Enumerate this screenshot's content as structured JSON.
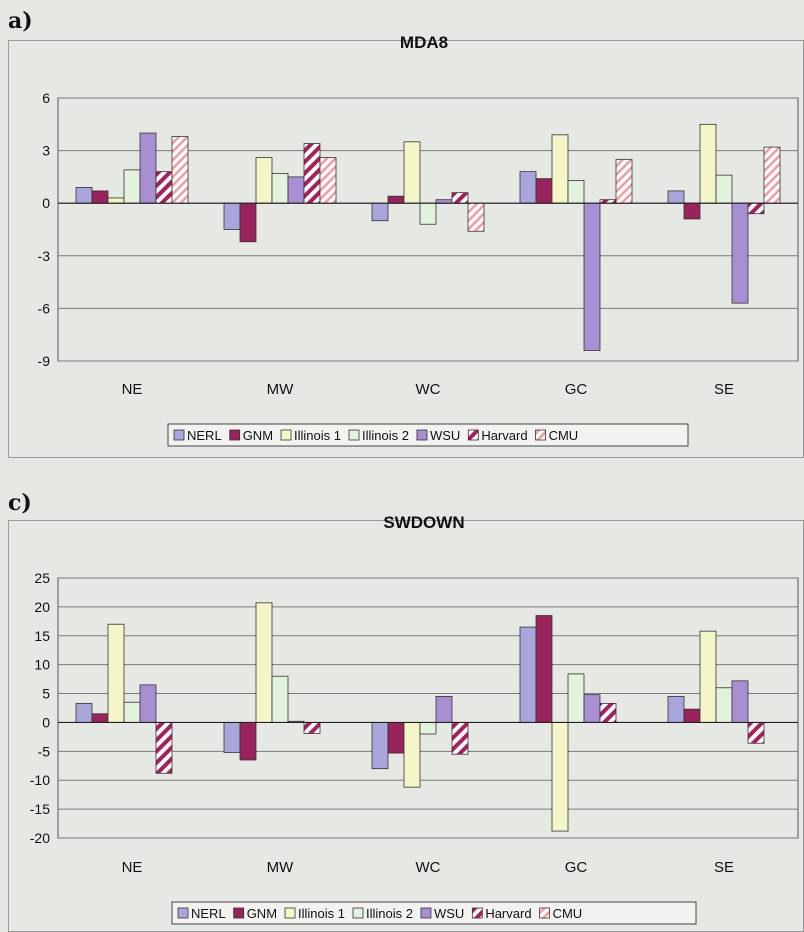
{
  "colors": {
    "NERL": "#a9a6dc",
    "GNM": "#99235c",
    "Illinois 1": "#f5f6c8",
    "Illinois 2": "#e2f2dc",
    "WSU": "#a88ed2",
    "Harvard": "#a81f5a",
    "CMU": "#f29ca0",
    "plot_bg": "#e6e8e3",
    "grid": "#7a7a7a"
  },
  "chart_data": [
    {
      "type": "bar",
      "panel_label": "a)",
      "title": "MDA8",
      "categories": [
        "NE",
        "MW",
        "WC",
        "GC",
        "SE"
      ],
      "ylim": [
        -9,
        6
      ],
      "yticks": [
        6,
        3,
        0,
        -3,
        -6,
        -9
      ],
      "grid": true,
      "legend_position": "bottom",
      "series": [
        {
          "name": "NERL",
          "pattern": "solid",
          "values": [
            0.9,
            -1.5,
            -1.0,
            1.8,
            0.7
          ]
        },
        {
          "name": "GNM",
          "pattern": "solid",
          "values": [
            0.7,
            -2.2,
            0.4,
            1.4,
            -0.9
          ]
        },
        {
          "name": "Illinois 1",
          "pattern": "solid",
          "values": [
            0.3,
            2.6,
            3.5,
            3.9,
            4.5
          ]
        },
        {
          "name": "Illinois 2",
          "pattern": "solid",
          "values": [
            1.9,
            1.7,
            -1.2,
            1.3,
            1.6
          ]
        },
        {
          "name": "WSU",
          "pattern": "solid",
          "values": [
            4.0,
            1.5,
            0.2,
            -8.4,
            -5.7
          ]
        },
        {
          "name": "Harvard",
          "pattern": "wide",
          "values": [
            1.8,
            3.4,
            0.6,
            0.2,
            -0.6
          ]
        },
        {
          "name": "CMU",
          "pattern": "light",
          "values": [
            3.8,
            2.6,
            -1.6,
            2.5,
            3.2
          ]
        }
      ]
    },
    {
      "type": "bar",
      "panel_label": "c)",
      "title": "SWDOWN",
      "categories": [
        "NE",
        "MW",
        "WC",
        "GC",
        "SE"
      ],
      "ylim": [
        -20,
        25
      ],
      "yticks": [
        25,
        20,
        15,
        10,
        5,
        0,
        -5,
        -10,
        -15,
        -20
      ],
      "grid": true,
      "legend_position": "bottom",
      "series": [
        {
          "name": "NERL",
          "pattern": "solid",
          "values": [
            3.3,
            -5.2,
            -8.0,
            16.5,
            4.5
          ]
        },
        {
          "name": "GNM",
          "pattern": "solid",
          "values": [
            1.5,
            -6.5,
            -5.3,
            18.5,
            2.3
          ]
        },
        {
          "name": "Illinois 1",
          "pattern": "solid",
          "values": [
            17.0,
            20.7,
            -11.2,
            -18.8,
            15.8
          ]
        },
        {
          "name": "Illinois 2",
          "pattern": "solid",
          "values": [
            3.5,
            8.0,
            -2.0,
            8.4,
            6.0
          ]
        },
        {
          "name": "WSU",
          "pattern": "solid",
          "values": [
            6.5,
            0.2,
            4.5,
            4.8,
            7.2
          ]
        },
        {
          "name": "Harvard",
          "pattern": "wide",
          "values": [
            -8.8,
            -1.9,
            -5.5,
            3.3,
            -3.6
          ]
        },
        {
          "name": "CMU",
          "pattern": "light",
          "values": [
            0,
            0,
            0,
            0,
            0
          ]
        }
      ]
    }
  ]
}
